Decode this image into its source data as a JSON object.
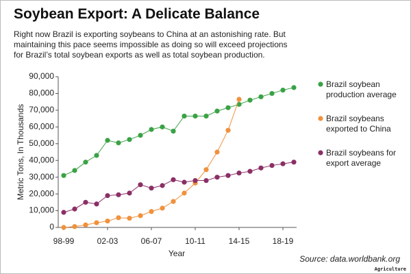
{
  "chart_data": {
    "type": "line",
    "title": "Soybean Export: A Delicate Balance",
    "subtitle": "Right now Brazil is exporting soybeans to China at an astonishing rate. But maintaining this pace seems impossible as doing so will exceed projections for Brazil’s total soybean exports as well as total soybean production.",
    "x_label": "Year",
    "y_label": "Metric Tons, In Thousands",
    "source": "Source: data.worldbank.org",
    "brand": "Agriculture",
    "categories": [
      "98-99",
      null,
      null,
      null,
      "02-03",
      null,
      null,
      null,
      "06-07",
      null,
      null,
      null,
      "10-11",
      null,
      null,
      null,
      "14-15",
      null,
      null,
      null,
      "18-19",
      null
    ],
    "series": [
      {
        "name": "Brazil soybean production average",
        "color": "#3aa245",
        "values": [
          31000,
          34000,
          39000,
          43000,
          52000,
          50500,
          52500,
          55000,
          58500,
          60000,
          57500,
          66500,
          66500,
          66500,
          69500,
          71500,
          73500,
          76000,
          78000,
          80000,
          82000,
          83500
        ]
      },
      {
        "name": "Brazil soybeans exported to China",
        "color": "#f0913c",
        "values": [
          0,
          500,
          1500,
          2800,
          3800,
          5800,
          5500,
          7000,
          9500,
          11500,
          15500,
          20500,
          26500,
          34500,
          45000,
          58000,
          76500,
          null,
          null,
          null,
          null,
          null
        ]
      },
      {
        "name": "Brazil soybeans for export average",
        "color": "#8b2f65",
        "values": [
          9000,
          11000,
          15000,
          14000,
          19000,
          19500,
          20500,
          25500,
          23500,
          25000,
          28500,
          27000,
          28000,
          28000,
          30000,
          31000,
          32500,
          33500,
          35500,
          37000,
          38000,
          39000
        ]
      }
    ],
    "ylim": [
      0,
      90000
    ],
    "yticks": [
      0,
      {
        "value": 10000,
        "label": "10,000"
      },
      {
        "value": 20000,
        "label": "20,000"
      },
      {
        "value": 30000,
        "label": "30,000"
      },
      {
        "value": 40000,
        "label": "40,000"
      },
      {
        "value": 50000,
        "label": "50,000"
      },
      {
        "value": 60000,
        "label": "60,000"
      },
      {
        "value": 70000,
        "label": "70,000"
      },
      {
        "value": 80000,
        "label": "80,000"
      },
      {
        "value": 90000,
        "label": "90,000"
      }
    ],
    "grid": false
  }
}
